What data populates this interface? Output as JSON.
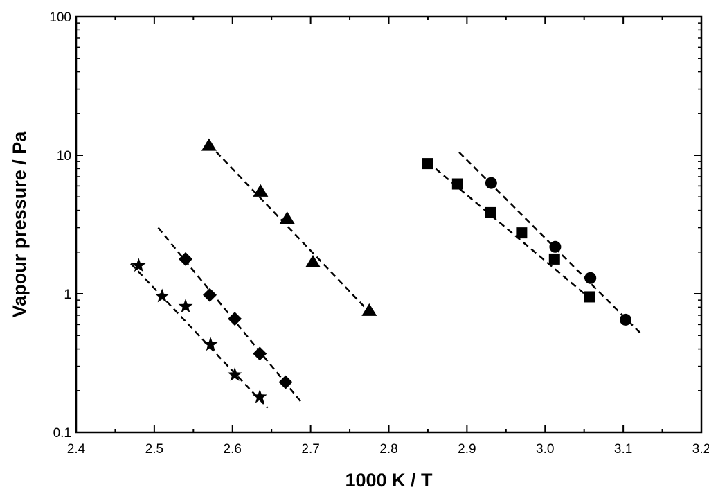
{
  "chart_data": {
    "type": "scatter",
    "title": "",
    "xlabel": "1000 K / T",
    "ylabel": "Vapour pressure / Pa",
    "xlim": [
      2.4,
      3.2
    ],
    "ylim": [
      0.1,
      100
    ],
    "yscale": "log",
    "grid": false,
    "legend": "none",
    "x_ticks": [
      "2.4",
      "2.5",
      "2.6",
      "2.7",
      "2.8",
      "2.9",
      "3.0",
      "3.1",
      "3.2"
    ],
    "y_ticks": [
      "0.1",
      "1",
      "10",
      "100"
    ],
    "color": "#000000",
    "series": [
      {
        "marker": "star",
        "points": [
          [
            2.48,
            1.6
          ],
          [
            2.51,
            0.96
          ],
          [
            2.54,
            0.81
          ],
          [
            2.572,
            0.43
          ],
          [
            2.603,
            0.26
          ],
          [
            2.635,
            0.18
          ]
        ],
        "fit": [
          [
            2.47,
            1.65
          ],
          [
            2.645,
            0.15
          ]
        ]
      },
      {
        "marker": "diamond",
        "points": [
          [
            2.54,
            1.78
          ],
          [
            2.571,
            0.98
          ],
          [
            2.603,
            0.66
          ],
          [
            2.635,
            0.37
          ],
          [
            2.668,
            0.23
          ]
        ],
        "fit": [
          [
            2.505,
            3.0
          ],
          [
            2.69,
            0.16
          ]
        ]
      },
      {
        "marker": "triangle",
        "points": [
          [
            2.57,
            11.8
          ],
          [
            2.636,
            5.5
          ],
          [
            2.67,
            3.5
          ],
          [
            2.703,
            1.7
          ],
          [
            2.775,
            0.76
          ]
        ],
        "fit": [
          [
            2.57,
            12.0
          ],
          [
            2.775,
            0.74
          ]
        ]
      },
      {
        "marker": "square",
        "points": [
          [
            2.85,
            8.7
          ],
          [
            2.888,
            6.2
          ],
          [
            2.93,
            3.85
          ],
          [
            2.97,
            2.75
          ],
          [
            3.012,
            1.78
          ],
          [
            3.057,
            0.95
          ]
        ],
        "fit": [
          [
            2.85,
            8.9
          ],
          [
            3.06,
            0.9
          ]
        ]
      },
      {
        "marker": "circle",
        "points": [
          [
            2.931,
            6.3
          ],
          [
            3.013,
            2.18
          ],
          [
            3.058,
            1.3
          ],
          [
            3.103,
            0.65
          ]
        ],
        "fit": [
          [
            2.89,
            10.5
          ],
          [
            3.125,
            0.5
          ]
        ]
      }
    ]
  }
}
